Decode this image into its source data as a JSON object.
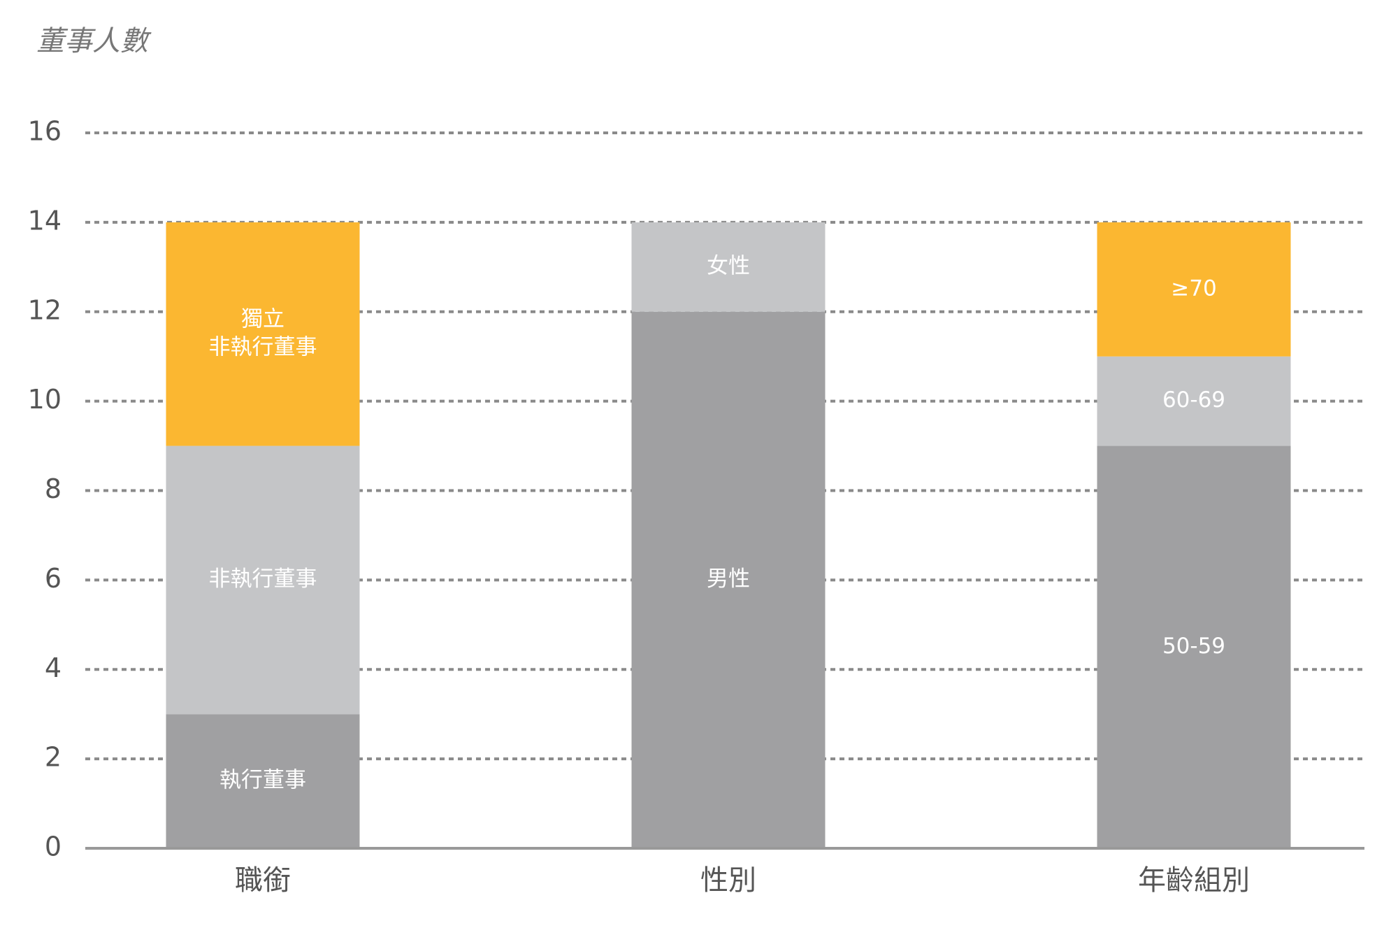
{
  "chart_data": {
    "type": "stacked_bar",
    "y_axis_title": "董事人數",
    "categories": [
      "職銜",
      "性別",
      "年齡組別"
    ],
    "bars": [
      {
        "segments": [
          {
            "label": "執行董事",
            "value": 3,
            "color": "#a0a0a2"
          },
          {
            "label": "非執行董事",
            "value": 6,
            "color": "#c4c5c7"
          },
          {
            "label": [
              "獨立",
              "非執行董事"
            ],
            "value": 5,
            "color": "#fbb731"
          }
        ]
      },
      {
        "segments": [
          {
            "label": "男性",
            "value": 12,
            "color": "#a0a0a2"
          },
          {
            "label": "女性",
            "value": 2,
            "color": "#c4c5c7"
          }
        ]
      },
      {
        "segments": [
          {
            "label": "50-59",
            "value": 9,
            "color": "#a0a0a2"
          },
          {
            "label": "60-69",
            "value": 2,
            "color": "#c4c5c7"
          },
          {
            "label": "≥70",
            "value": 3,
            "color": "#fbb731"
          }
        ]
      }
    ],
    "ylim": [
      0,
      16
    ],
    "yticks": [
      0,
      2,
      4,
      6,
      8,
      10,
      12,
      14,
      16
    ],
    "grid": true
  }
}
